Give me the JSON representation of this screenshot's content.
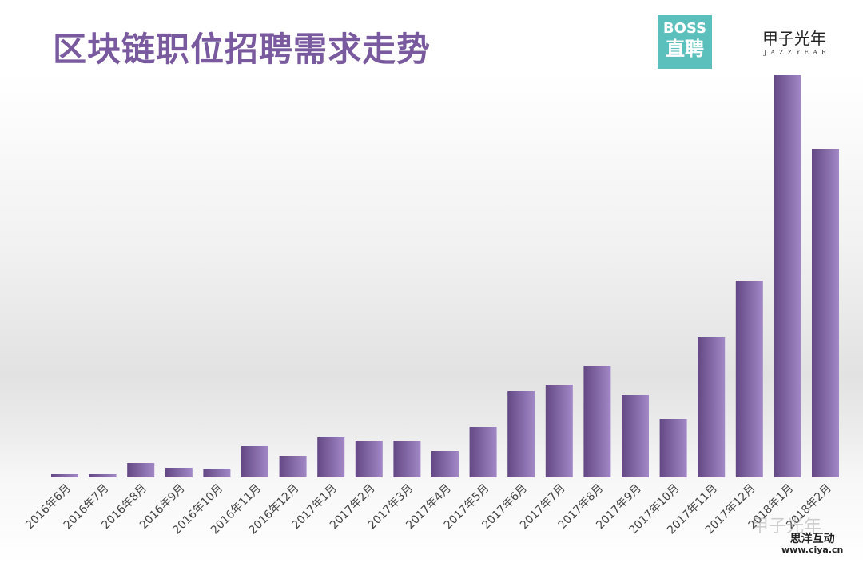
{
  "title": "区块链职位招聘需求走势",
  "logos": {
    "boss_line1": "BOSS",
    "boss_line2": "直聘",
    "jazzyear_cn": "甲子光年",
    "jazzyear_en": "JAZZYEAR"
  },
  "watermark": {
    "wechat": "甲子光年",
    "site_name": "思洋互动",
    "site_url": "www.ciya.cn"
  },
  "colors": {
    "bar_dark": "#6a4f8f",
    "bar_light": "#9b7fc0",
    "title": "#7a5a9e",
    "boss": "#5bbfbb"
  },
  "chart_data": {
    "type": "bar",
    "title": "区块链职位招聘需求走势",
    "xlabel": "",
    "ylabel": "",
    "note": "no y-axis shown; values are relative bar heights",
    "categories": [
      "2016年6月",
      "2016年7月",
      "2016年8月",
      "2016年9月",
      "2016年10月",
      "2016年11月",
      "2016年12月",
      "2017年1月",
      "2017年2月",
      "2017年3月",
      "2017年4月",
      "2017年5月",
      "2017年6月",
      "2017年7月",
      "2017年8月",
      "2017年9月",
      "2017年10月",
      "2017年11月",
      "2017年12月",
      "2018年1月",
      "2018年2月"
    ],
    "values": [
      4,
      4,
      18,
      12,
      10,
      39,
      27,
      50,
      46,
      46,
      33,
      63,
      108,
      116,
      139,
      103,
      73,
      175,
      246,
      503,
      411
    ],
    "ylim": [
      0,
      503
    ],
    "grid": false
  }
}
